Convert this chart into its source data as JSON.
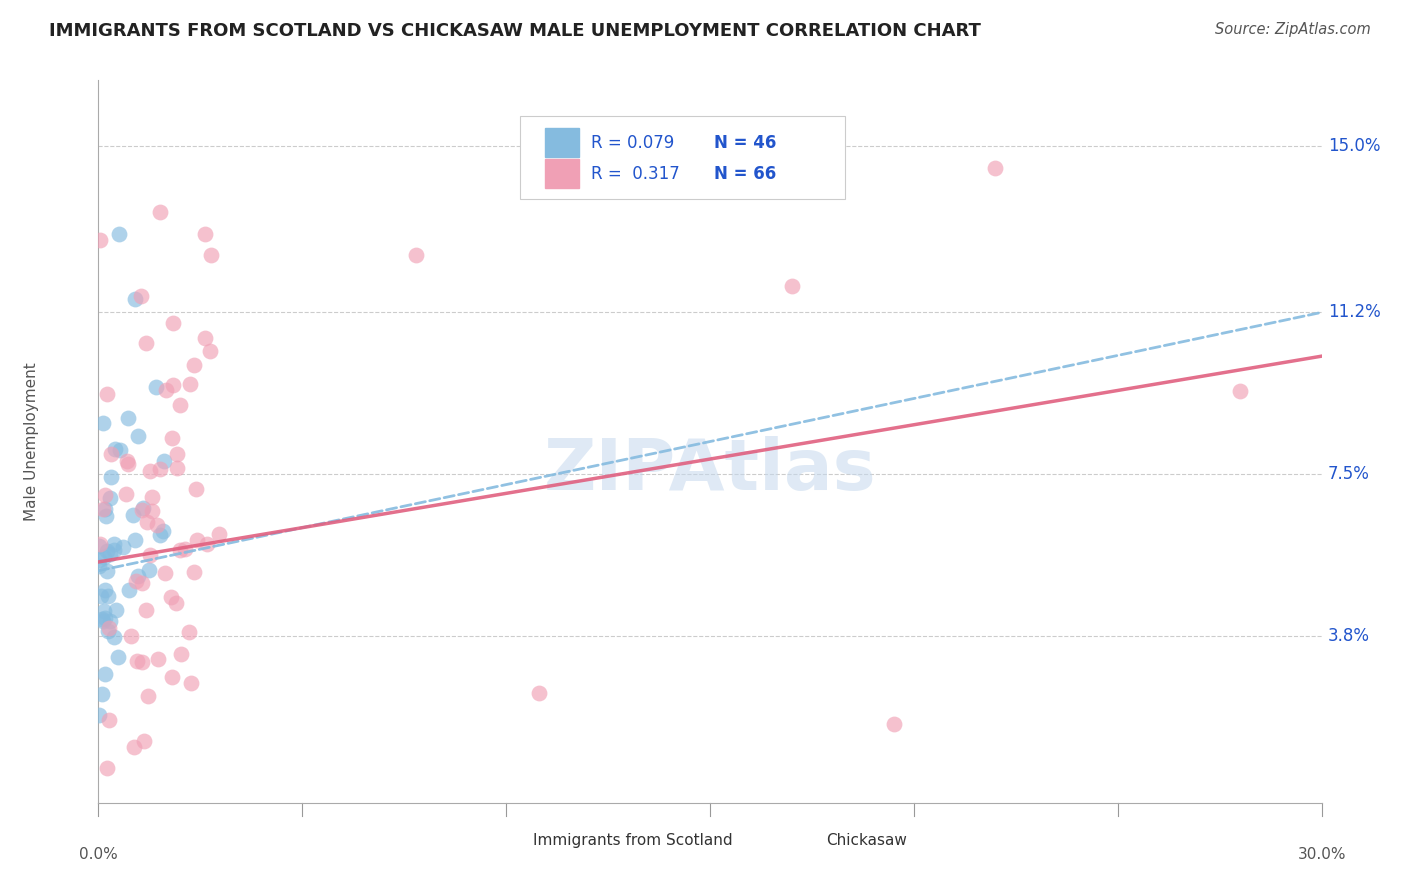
{
  "title": "IMMIGRANTS FROM SCOTLAND VS CHICKASAW MALE UNEMPLOYMENT CORRELATION CHART",
  "source": "Source: ZipAtlas.com",
  "ylabel": "Male Unemployment",
  "ytick_labels": [
    "15.0%",
    "11.2%",
    "7.5%",
    "3.8%"
  ],
  "ytick_values": [
    0.15,
    0.112,
    0.075,
    0.038
  ],
  "xlim": [
    0.0,
    0.3
  ],
  "ylim": [
    0.0,
    0.165
  ],
  "blue_color": "#85bbdf",
  "pink_color": "#f0a0b5",
  "trend_blue_color": "#85bbdf",
  "trend_pink_color": "#e06080",
  "legend_text_color": "#2255cc",
  "watermark_color": "#c5d8ed",
  "title_color": "#222222",
  "source_color": "#555555",
  "ylabel_color": "#555555",
  "grid_color": "#cccccc",
  "spine_color": "#aaaaaa",
  "tick_label_color": "#555555",
  "scatter_size": 130,
  "scatter_alpha": 0.65,
  "legend_r1": "R = 0.079",
  "legend_n1": "N = 46",
  "legend_r2": "R =  0.317",
  "legend_n2": "N = 66",
  "legend_label1": "Immigrants from Scotland",
  "legend_label2": "Chickasaw",
  "trend_blue_x0": 0.0,
  "trend_blue_y0": 0.053,
  "trend_blue_x1": 0.3,
  "trend_blue_y1": 0.112,
  "trend_pink_x0": 0.0,
  "trend_pink_y0": 0.055,
  "trend_pink_x1": 0.3,
  "trend_pink_y1": 0.102
}
